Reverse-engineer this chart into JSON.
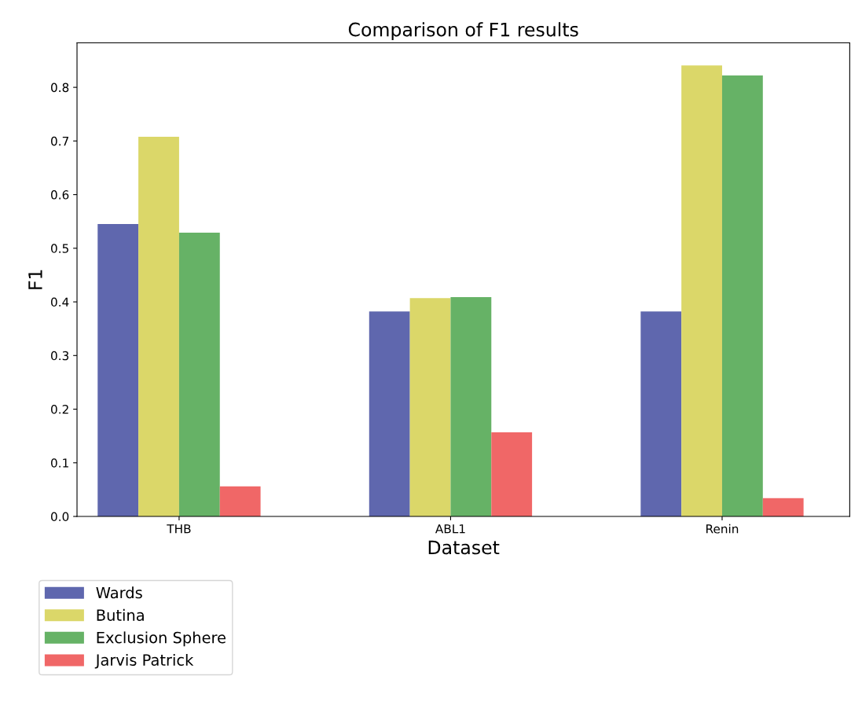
{
  "chart_data": {
    "type": "bar",
    "title": "Comparison of F1 results",
    "xlabel": "Dataset",
    "ylabel": "F1",
    "categories": [
      "THB",
      "ABL1",
      "Renin"
    ],
    "series": [
      {
        "name": "Wards",
        "color": "#5f67ae",
        "values": [
          0.545,
          0.382,
          0.382
        ]
      },
      {
        "name": "Butina",
        "color": "#dbd769",
        "values": [
          0.708,
          0.407,
          0.841
        ]
      },
      {
        "name": "Exclusion Sphere",
        "color": "#66b266",
        "values": [
          0.529,
          0.409,
          0.822
        ]
      },
      {
        "name": "Jarvis Patrick",
        "color": "#f06767",
        "values": [
          0.056,
          0.157,
          0.034
        ]
      }
    ],
    "ylim": [
      0,
      0.883
    ],
    "yticks": [
      "0.0",
      0.1,
      0.2,
      0.3,
      0.4,
      0.5,
      0.6,
      0.7,
      0.8
    ],
    "legend": "bottom left",
    "grid": false
  }
}
